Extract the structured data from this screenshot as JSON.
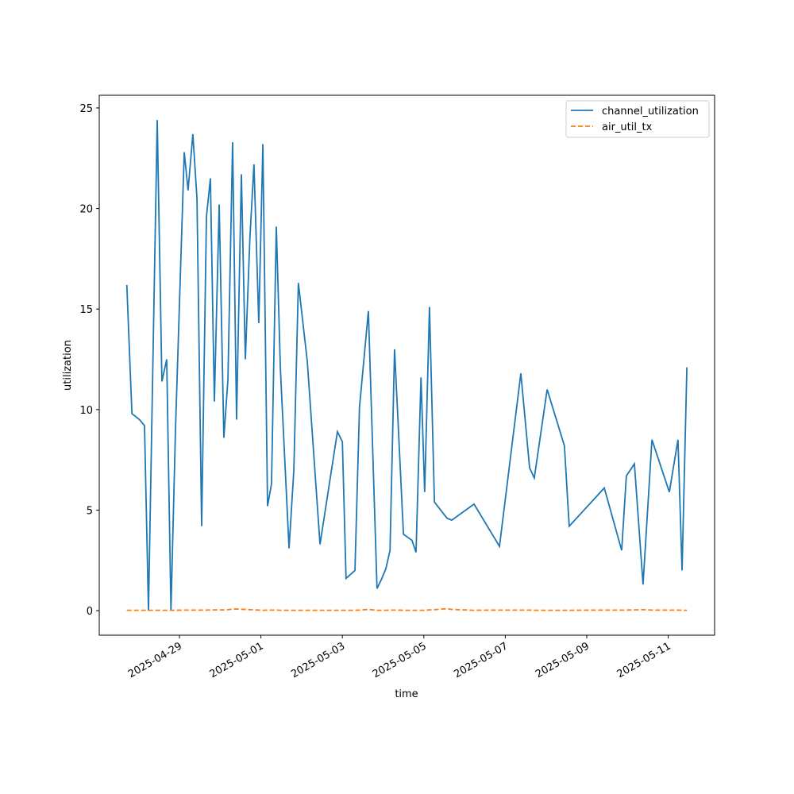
{
  "chart_data": {
    "type": "line",
    "xlabel": "time",
    "ylabel": "utilization",
    "x": [
      "2025-04-27 17:00",
      "2025-04-27 20:00",
      "2025-04-28 00:30",
      "2025-04-28 03:25",
      "2025-04-28 05:45",
      "2025-04-28 10:55",
      "2025-04-28 13:40",
      "2025-04-28 16:30",
      "2025-04-28 19:00",
      "2025-04-28 21:40",
      "2025-04-29 02:50",
      "2025-04-29 05:05",
      "2025-04-29 07:55",
      "2025-04-29 10:20",
      "2025-04-29 13:05",
      "2025-04-29 15:55",
      "2025-04-29 18:15",
      "2025-04-29 20:35",
      "2025-04-29 23:25",
      "2025-04-30 02:10",
      "2025-04-30 04:35",
      "2025-04-30 07:20",
      "2025-04-30 09:40",
      "2025-04-30 12:30",
      "2025-04-30 14:50",
      "2025-04-30 17:30",
      "2025-04-30 19:55",
      "2025-04-30 22:45",
      "2025-05-01 01:10",
      "2025-05-01 03:55",
      "2025-05-01 06:15",
      "2025-05-01 09:05",
      "2025-05-01 11:30",
      "2025-05-01 16:35",
      "2025-05-01 19:25",
      "2025-05-01 22:05",
      "2025-05-02 03:20",
      "2025-05-02 10:50",
      "2025-05-02 21:05",
      "2025-05-03 00:00",
      "2025-05-03 02:10",
      "2025-05-03 07:25",
      "2025-05-03 10:05",
      "2025-05-03 15:20",
      "2025-05-03 20:25",
      "2025-05-03 23:15",
      "2025-05-04 01:40",
      "2025-05-04 04:05",
      "2025-05-04 06:45",
      "2025-05-04 12:00",
      "2025-05-04 17:00",
      "2025-05-04 19:25",
      "2025-05-04 22:20",
      "2025-05-05 00:30",
      "2025-05-05 03:20",
      "2025-05-05 06:15",
      "2025-05-05 13:40",
      "2025-05-05 16:30",
      "2025-05-06 05:35",
      "2025-05-06 20:35",
      "2025-05-07 09:10",
      "2025-05-07 14:20",
      "2025-05-07 17:05",
      "2025-05-08 00:40",
      "2025-05-08 10:50",
      "2025-05-08 13:40",
      "2025-05-09 10:20",
      "2025-05-09 20:35",
      "2025-05-09 23:20",
      "2025-05-10 04:05",
      "2025-05-10 09:10",
      "2025-05-10 14:25",
      "2025-05-11 00:40",
      "2025-05-11 05:45",
      "2025-05-11 08:10",
      "2025-05-11 11:00"
    ],
    "series": [
      {
        "name": "channel_utilization",
        "color": "#1f77b4",
        "dash": false,
        "values": [
          16.2,
          9.8,
          9.5,
          9.2,
          0,
          24.4,
          11.4,
          12.5,
          0,
          9,
          22.8,
          20.9,
          23.7,
          20.5,
          4.2,
          19.6,
          21.5,
          10.4,
          20.2,
          8.6,
          11.5,
          23.3,
          9.5,
          21.7,
          12.5,
          18.5,
          22.2,
          14.3,
          23.2,
          5.2,
          6.3,
          19.1,
          12,
          3.1,
          7,
          16.3,
          12.4,
          3.3,
          8.9,
          8.4,
          1.6,
          2,
          10.1,
          14.9,
          1.1,
          1.6,
          2.1,
          3,
          13,
          3.8,
          3.5,
          2.9,
          11.6,
          5.9,
          15.1,
          5.4,
          4.6,
          4.5,
          5.3,
          3.2,
          11.8,
          7.1,
          6.6,
          11,
          8.2,
          4.2,
          6.1,
          3,
          6.7,
          7.3,
          1.3,
          8.5,
          5.9,
          8.5,
          2,
          12.1
        ]
      },
      {
        "name": "air_util_tx",
        "color": "#ff7f0e",
        "dash": true,
        "values": [
          0.02,
          0.02,
          0.02,
          0.02,
          0.02,
          0.02,
          0.02,
          0.02,
          0.02,
          0.02,
          0.03,
          0.03,
          0.03,
          0.03,
          0.03,
          0.03,
          0.04,
          0.04,
          0.04,
          0.04,
          0.05,
          0.08,
          0.08,
          0.07,
          0.06,
          0.05,
          0.04,
          0.03,
          0.02,
          0.03,
          0.03,
          0.03,
          0.02,
          0.02,
          0.02,
          0.02,
          0.02,
          0.02,
          0.02,
          0.02,
          0.02,
          0.02,
          0.03,
          0.06,
          0.02,
          0.02,
          0.02,
          0.03,
          0.03,
          0.02,
          0.02,
          0.02,
          0.02,
          0.02,
          0.04,
          0.05,
          0.1,
          0.06,
          0.02,
          0.03,
          0.03,
          0.03,
          0.02,
          0.02,
          0.02,
          0.02,
          0.03,
          0.03,
          0.03,
          0.04,
          0.05,
          0.03,
          0.03,
          0.03,
          0.02,
          0.02
        ]
      }
    ],
    "xlim": [
      "2025-04-27 00:45",
      "2025-05-12 03:20"
    ],
    "xticks": [
      "2025-04-29",
      "2025-05-01",
      "2025-05-03",
      "2025-05-05",
      "2025-05-07",
      "2025-05-09",
      "2025-05-11"
    ],
    "ylim": [
      -1.22,
      25.63
    ],
    "yticks": [
      0,
      5,
      10,
      15,
      20,
      25
    ],
    "legend": "upper right"
  }
}
